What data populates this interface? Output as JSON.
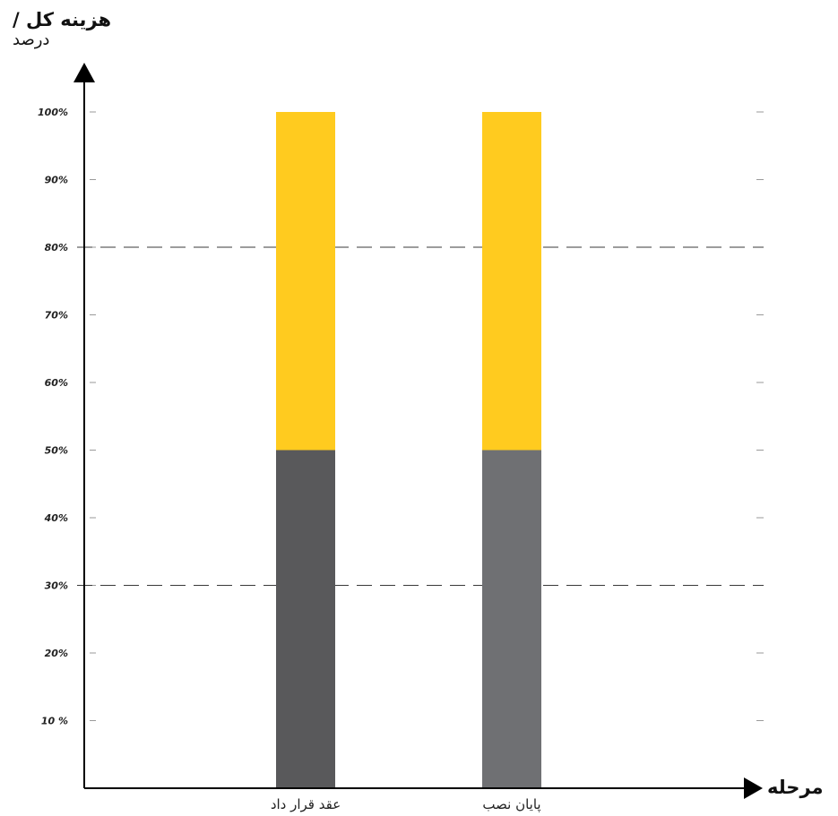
{
  "chart_data": {
    "type": "bar",
    "stacked": true,
    "title": "",
    "ylabel": "هزینه کل /",
    "ylabel_sub": "درصد",
    "xlabel": "مرحله",
    "categories": [
      "عقد قرار داد",
      "پایان نصب"
    ],
    "series": [
      {
        "values": [
          50,
          50
        ],
        "colors": [
          "#59595b",
          "#6f7073"
        ]
      },
      {
        "values": [
          50,
          50
        ],
        "colors": [
          "#ffcb1f",
          "#ffcb1f"
        ]
      }
    ],
    "ylim": [
      0,
      100
    ],
    "y_ticks": [
      {
        "value": 10,
        "label": "10 %"
      },
      {
        "value": 20,
        "label": "20%"
      },
      {
        "value": 30,
        "label": "30%"
      },
      {
        "value": 40,
        "label": "40%"
      },
      {
        "value": 50,
        "label": "50%"
      },
      {
        "value": 60,
        "label": "60%"
      },
      {
        "value": 70,
        "label": "70%"
      },
      {
        "value": 80,
        "label": "80%"
      },
      {
        "value": 90,
        "label": "90%"
      },
      {
        "value": 100,
        "label": "100%"
      }
    ],
    "reference_lines": [
      30,
      80
    ],
    "grid": false,
    "legend": "none"
  }
}
